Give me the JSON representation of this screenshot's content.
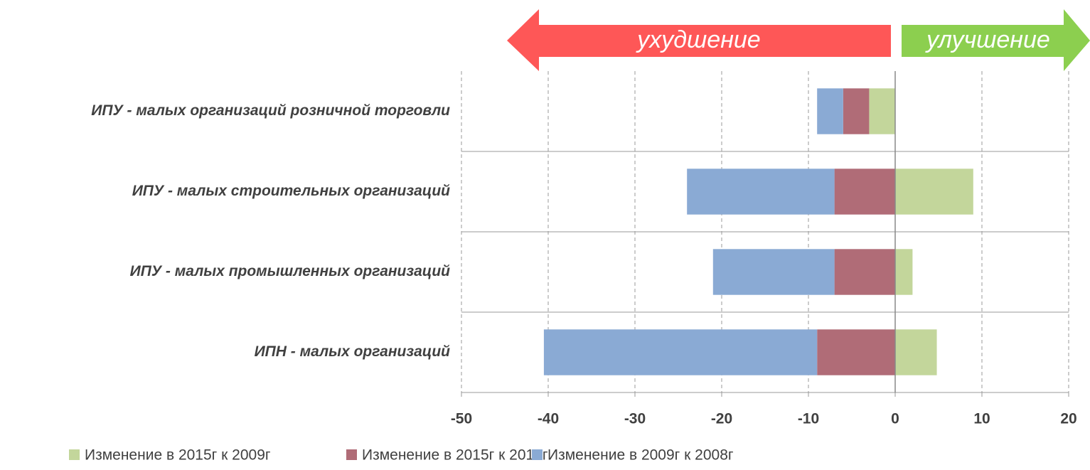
{
  "chart_data": {
    "type": "bar",
    "orientation": "horizontal",
    "stacked": true,
    "categories": [
      "ИПУ - малых организаций розничной торговли",
      "ИПУ - малых строительных организаций",
      "ИПУ - малых промышленных организаций",
      "ИПН - малых организаций"
    ],
    "series": [
      {
        "name": "Изменение в 2015г к 2009г",
        "color": "#c3d69b",
        "values": [
          -3,
          9,
          2,
          4.8
        ]
      },
      {
        "name": "Изменение в 2015г к 2014г",
        "color": "#b06c77",
        "values": [
          -3,
          -7,
          -7,
          -9
        ]
      },
      {
        "name": "Изменение в 2009г к 2008г",
        "color": "#8aaad4",
        "values": [
          -3,
          -17,
          -14,
          -31.5
        ]
      }
    ],
    "xlim": [
      -50,
      20
    ],
    "xticks": [
      -50,
      -40,
      -30,
      -20,
      -10,
      0,
      10,
      20
    ],
    "grid": true,
    "legend": "bottom",
    "annotations": [
      {
        "text": "ухудшение",
        "color": "#fe5757"
      },
      {
        "text": "улучшение",
        "color": "#8ccf4f"
      }
    ]
  }
}
